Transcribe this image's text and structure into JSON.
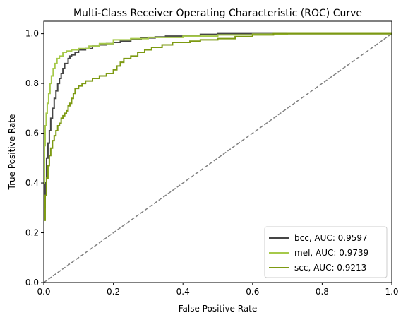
{
  "chart_data": {
    "type": "line",
    "title": "Multi-Class Receiver Operating Characteristic (ROC) Curve",
    "xlabel": "False Positive Rate",
    "ylabel": "True Positive Rate",
    "xlim": [
      0.0,
      1.0
    ],
    "ylim": [
      0.0,
      1.05
    ],
    "xticks": [
      "0.0",
      "0.2",
      "0.4",
      "0.6",
      "0.8",
      "1.0"
    ],
    "yticks": [
      "0.0",
      "0.2",
      "0.4",
      "0.6",
      "0.8",
      "1.0"
    ],
    "grid": false,
    "legend_position": "lower-right",
    "diagonal": {
      "x": [
        0,
        1
      ],
      "y": [
        0,
        1
      ],
      "color": "#808080",
      "style": "dashed"
    },
    "series": [
      {
        "name": "bcc, AUC: 0.9597",
        "color": "#454545",
        "x": [
          0,
          0,
          0.004,
          0.004,
          0.008,
          0.008,
          0.012,
          0.012,
          0.016,
          0.016,
          0.02,
          0.02,
          0.025,
          0.025,
          0.03,
          0.03,
          0.035,
          0.035,
          0.04,
          0.04,
          0.045,
          0.045,
          0.05,
          0.05,
          0.055,
          0.055,
          0.06,
          0.06,
          0.07,
          0.07,
          0.075,
          0.075,
          0.08,
          0.08,
          0.09,
          0.09,
          0.1,
          0.1,
          0.12,
          0.12,
          0.14,
          0.14,
          0.16,
          0.16,
          0.18,
          0.18,
          0.2,
          0.2,
          0.22,
          0.22,
          0.25,
          0.25,
          0.28,
          0.28,
          0.32,
          0.32,
          0.35,
          0.35,
          0.4,
          0.4,
          0.45,
          0.45,
          0.5,
          0.5,
          1.0
        ],
        "y": [
          0,
          0.3,
          0.3,
          0.4,
          0.4,
          0.5,
          0.5,
          0.56,
          0.56,
          0.61,
          0.61,
          0.66,
          0.66,
          0.7,
          0.7,
          0.74,
          0.74,
          0.77,
          0.77,
          0.8,
          0.8,
          0.82,
          0.82,
          0.84,
          0.84,
          0.86,
          0.86,
          0.88,
          0.88,
          0.9,
          0.9,
          0.91,
          0.91,
          0.915,
          0.915,
          0.925,
          0.925,
          0.935,
          0.935,
          0.94,
          0.94,
          0.95,
          0.95,
          0.955,
          0.955,
          0.96,
          0.96,
          0.965,
          0.965,
          0.97,
          0.97,
          0.978,
          0.978,
          0.983,
          0.983,
          0.987,
          0.987,
          0.99,
          0.99,
          0.993,
          0.993,
          0.997,
          0.997,
          1.0,
          1.0
        ]
      },
      {
        "name": "mel, AUC: 0.9739",
        "color": "#a6c94a",
        "x": [
          0,
          0,
          0.002,
          0.002,
          0.004,
          0.004,
          0.007,
          0.007,
          0.01,
          0.01,
          0.014,
          0.014,
          0.018,
          0.018,
          0.022,
          0.022,
          0.027,
          0.027,
          0.032,
          0.032,
          0.038,
          0.038,
          0.045,
          0.045,
          0.055,
          0.055,
          0.065,
          0.065,
          0.08,
          0.08,
          0.1,
          0.1,
          0.13,
          0.13,
          0.16,
          0.16,
          0.2,
          0.2,
          0.25,
          0.25,
          0.3,
          0.3,
          0.4,
          0.4,
          0.5,
          0.5,
          0.6,
          0.6,
          0.7,
          0.7,
          1.0
        ],
        "y": [
          0,
          0.4,
          0.4,
          0.55,
          0.55,
          0.63,
          0.63,
          0.68,
          0.68,
          0.72,
          0.72,
          0.76,
          0.76,
          0.8,
          0.8,
          0.83,
          0.83,
          0.86,
          0.86,
          0.88,
          0.88,
          0.9,
          0.9,
          0.91,
          0.91,
          0.925,
          0.925,
          0.93,
          0.93,
          0.935,
          0.935,
          0.94,
          0.94,
          0.95,
          0.95,
          0.96,
          0.96,
          0.975,
          0.975,
          0.98,
          0.98,
          0.985,
          0.985,
          0.99,
          0.99,
          0.995,
          0.995,
          0.998,
          0.998,
          1.0,
          1.0
        ]
      },
      {
        "name": "scc, AUC: 0.9213",
        "color": "#7d9a12",
        "x": [
          0,
          0,
          0.004,
          0.004,
          0.008,
          0.008,
          0.012,
          0.012,
          0.016,
          0.016,
          0.02,
          0.02,
          0.025,
          0.025,
          0.03,
          0.03,
          0.035,
          0.035,
          0.04,
          0.04,
          0.045,
          0.045,
          0.05,
          0.05,
          0.055,
          0.055,
          0.06,
          0.06,
          0.065,
          0.065,
          0.07,
          0.07,
          0.075,
          0.075,
          0.08,
          0.08,
          0.085,
          0.085,
          0.09,
          0.09,
          0.1,
          0.1,
          0.11,
          0.11,
          0.12,
          0.12,
          0.14,
          0.14,
          0.16,
          0.16,
          0.18,
          0.18,
          0.2,
          0.2,
          0.21,
          0.21,
          0.22,
          0.22,
          0.23,
          0.23,
          0.25,
          0.25,
          0.27,
          0.27,
          0.29,
          0.29,
          0.31,
          0.31,
          0.34,
          0.34,
          0.37,
          0.37,
          0.42,
          0.42,
          0.45,
          0.45,
          0.5,
          0.5,
          0.55,
          0.55,
          0.6,
          0.6,
          0.66,
          0.66,
          1.0
        ],
        "y": [
          0,
          0.25,
          0.25,
          0.35,
          0.35,
          0.42,
          0.42,
          0.47,
          0.47,
          0.51,
          0.51,
          0.54,
          0.54,
          0.57,
          0.57,
          0.59,
          0.59,
          0.61,
          0.61,
          0.63,
          0.63,
          0.64,
          0.64,
          0.66,
          0.66,
          0.67,
          0.67,
          0.68,
          0.68,
          0.69,
          0.69,
          0.71,
          0.71,
          0.72,
          0.72,
          0.74,
          0.74,
          0.76,
          0.76,
          0.78,
          0.78,
          0.79,
          0.79,
          0.8,
          0.8,
          0.81,
          0.81,
          0.82,
          0.82,
          0.83,
          0.83,
          0.84,
          0.84,
          0.855,
          0.855,
          0.87,
          0.87,
          0.885,
          0.885,
          0.9,
          0.9,
          0.91,
          0.91,
          0.925,
          0.925,
          0.935,
          0.935,
          0.945,
          0.945,
          0.955,
          0.955,
          0.965,
          0.965,
          0.97,
          0.97,
          0.975,
          0.975,
          0.98,
          0.98,
          0.988,
          0.988,
          0.995,
          0.995,
          1.0,
          1.0
        ]
      }
    ]
  }
}
